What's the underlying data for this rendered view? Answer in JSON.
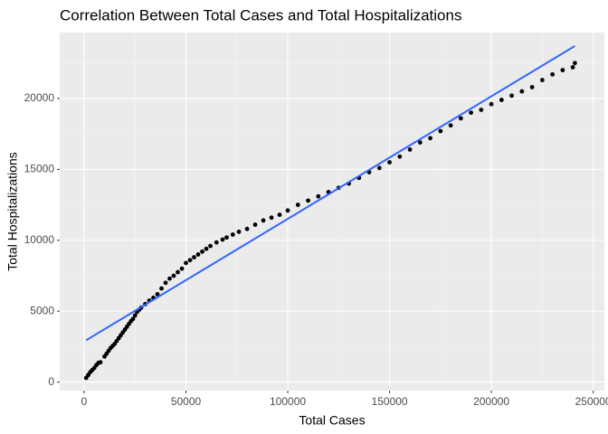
{
  "chart_data": {
    "type": "scatter",
    "title": "Correlation Between Total Cases and Total Hospitalizations",
    "x_label": "Total Cases",
    "y_label": "Total Hospitalizations",
    "x": [
      1000,
      2000,
      3000,
      4000,
      5000,
      6000,
      7000,
      8000,
      10000,
      11000,
      12000,
      13000,
      14000,
      15000,
      16000,
      17000,
      18000,
      19000,
      20000,
      21000,
      22000,
      23000,
      24000,
      25000,
      26000,
      27000,
      28000,
      30000,
      32000,
      34000,
      36000,
      38000,
      40000,
      42000,
      44000,
      46000,
      48000,
      50000,
      52000,
      54000,
      56000,
      58000,
      60000,
      62000,
      65000,
      68000,
      70000,
      73000,
      76000,
      80000,
      84000,
      88000,
      92000,
      96000,
      100000,
      105000,
      110000,
      115000,
      120000,
      125000,
      130000,
      135000,
      140000,
      145000,
      150000,
      155000,
      160000,
      165000,
      170000,
      175000,
      180000,
      185000,
      190000,
      195000,
      200000,
      205000,
      210000,
      215000,
      220000,
      225000,
      230000,
      235000,
      240000,
      241000
    ],
    "values": [
      300,
      500,
      700,
      850,
      1000,
      1200,
      1350,
      1400,
      1800,
      2000,
      2200,
      2400,
      2550,
      2700,
      2900,
      3100,
      3300,
      3500,
      3700,
      3900,
      4100,
      4300,
      4450,
      4700,
      4950,
      5100,
      5250,
      5500,
      5750,
      5950,
      6200,
      6600,
      7000,
      7300,
      7500,
      7750,
      8000,
      8400,
      8600,
      8800,
      9000,
      9200,
      9400,
      9600,
      9850,
      10050,
      10200,
      10400,
      10600,
      10800,
      11100,
      11400,
      11600,
      11800,
      12100,
      12500,
      12800,
      13100,
      13400,
      13700,
      14000,
      14400,
      14800,
      15100,
      15500,
      15900,
      16400,
      16900,
      17200,
      17700,
      18100,
      18600,
      19000,
      19200,
      19600,
      19900,
      20200,
      20500,
      20800,
      21300,
      21700,
      22000,
      22200,
      22500
    ],
    "color": "#000000",
    "trend_line": {
      "x": [
        1000,
        241000
      ],
      "values": [
        2950,
        23700
      ],
      "color": "#3366ff"
    },
    "xlim": [
      -12000,
      255500
    ],
    "ylim": [
      -600,
      24650
    ],
    "xticks": [
      0,
      50000,
      100000,
      150000,
      200000,
      250000
    ],
    "yticks": [
      0,
      5000,
      10000,
      15000,
      20000
    ],
    "grid": true
  }
}
